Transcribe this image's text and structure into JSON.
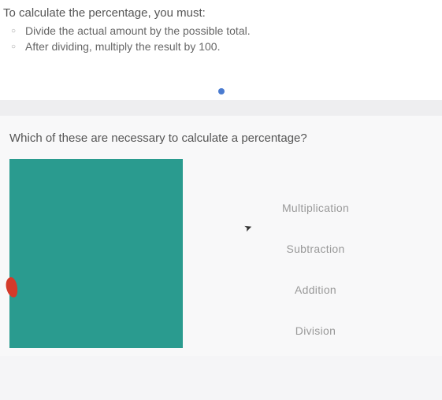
{
  "instruction": {
    "title": "To calculate the percentage, you must:",
    "steps": [
      "Divide the actual amount by the possible total.",
      "After dividing, multiply the result by 100."
    ]
  },
  "indicator": {
    "dot_color": "#4a7bd0"
  },
  "question": {
    "text": "Which of these are necessary to calculate a percentage?"
  },
  "image_panel": {
    "background_color": "#2a9b8f",
    "accent_color": "#d43a2a"
  },
  "options": [
    "Multiplication",
    "Subtraction",
    "Addition",
    "Division"
  ]
}
